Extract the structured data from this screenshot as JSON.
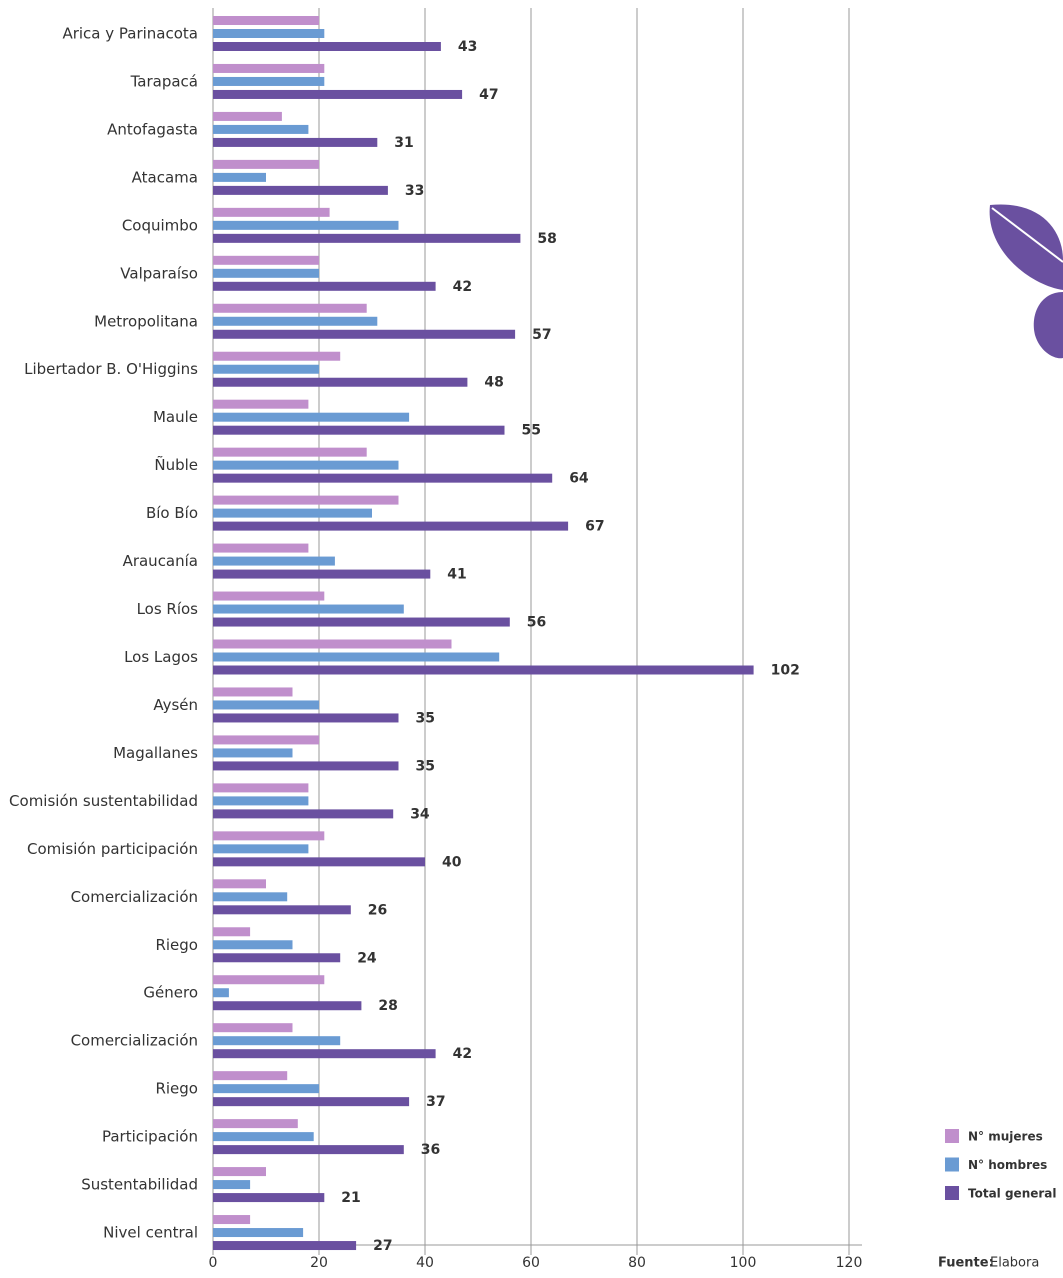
{
  "chart_data": {
    "type": "barh",
    "categories": [
      "Arica y Parinacota",
      "Tarapacá",
      "Antofagasta",
      "Atacama",
      "Coquimbo",
      "Valparaíso",
      "Metropolitana",
      "Libertador B. O'Higgins",
      "Maule",
      "Ñuble",
      "Bío Bío",
      "Araucanía",
      "Los Ríos",
      "Los Lagos",
      "Aysén",
      "Magallanes",
      "Comisión sustentabilidad",
      "Comisión participación",
      "Comercialización",
      "Riego",
      "Género",
      "Comercialización",
      "Riego",
      "Participación",
      "Sustentabilidad",
      "Nivel central"
    ],
    "series": [
      {
        "name": "N° mujeres",
        "color": "#c08fcc",
        "show_labels": false,
        "values": [
          20,
          21,
          13,
          20,
          22,
          20,
          29,
          24,
          18,
          29,
          35,
          18,
          21,
          45,
          15,
          20,
          18,
          21,
          10,
          7,
          21,
          15,
          14,
          16,
          10,
          7
        ]
      },
      {
        "name": "N° hombres",
        "color": "#6a9bd3",
        "show_labels": false,
        "values": [
          21,
          21,
          18,
          10,
          35,
          20,
          31,
          20,
          37,
          35,
          30,
          23,
          36,
          54,
          20,
          15,
          18,
          18,
          14,
          15,
          3,
          24,
          20,
          19,
          7,
          17
        ]
      },
      {
        "name": "Total general",
        "color": "#6a50a0",
        "show_labels": true,
        "values": [
          43,
          47,
          31,
          33,
          58,
          42,
          57,
          48,
          55,
          64,
          67,
          41,
          56,
          102,
          35,
          35,
          34,
          40,
          26,
          24,
          28,
          42,
          37,
          36,
          21,
          27
        ]
      }
    ],
    "xlim": [
      0,
      120
    ],
    "xticks": [
      0,
      20,
      40,
      60,
      80,
      100,
      120
    ],
    "grid": true,
    "source": {
      "label": "Fuente:",
      "text": "Elabora"
    }
  }
}
